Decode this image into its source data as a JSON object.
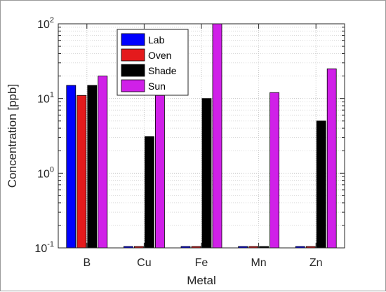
{
  "chart_data": {
    "type": "bar",
    "title": "",
    "xlabel": "Metal",
    "ylabel": "Concentration [ppb]",
    "yscale": "log",
    "ylim": [
      0.1,
      100
    ],
    "yticks": [
      0.1,
      1,
      10,
      100
    ],
    "grid": true,
    "legend_position": "top-left",
    "categories": [
      "B",
      "Cu",
      "Fe",
      "Mn",
      "Zn"
    ],
    "series": [
      {
        "name": "Lab",
        "color": "#0000ff",
        "values": [
          15,
          0.1,
          0.1,
          0.1,
          0.1
        ]
      },
      {
        "name": "Oven",
        "color": "#e41a1c",
        "values": [
          11,
          0.1,
          0.1,
          0.1,
          0.1
        ]
      },
      {
        "name": "Shade",
        "color": "#000000",
        "values": [
          15,
          3.1,
          10,
          0.1,
          5
        ]
      },
      {
        "name": "Sun",
        "color": "#d020e8",
        "values": [
          20,
          11,
          100,
          12,
          25
        ]
      }
    ]
  }
}
